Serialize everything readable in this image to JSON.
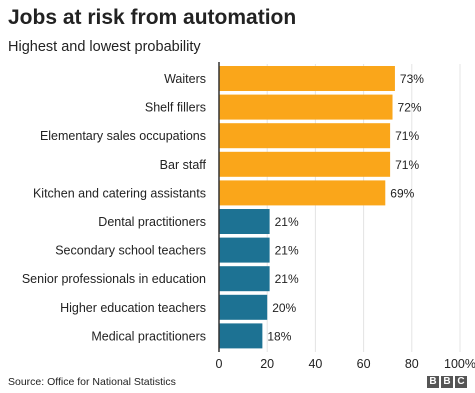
{
  "header": {
    "title": "Jobs at risk from automation",
    "subtitle": "Highest and lowest probability"
  },
  "footer": {
    "source": "Source: Office for National Statistics",
    "logo_letters": [
      "B",
      "B",
      "C"
    ]
  },
  "colors": {
    "high": "#faa61a",
    "low": "#1d7293",
    "axis": "#333333",
    "grid": "#e4e4e4",
    "text": "#222222"
  },
  "chart_data": {
    "type": "bar",
    "orientation": "horizontal",
    "title": "Jobs at risk from automation",
    "subtitle": "Highest and lowest probability",
    "categories": [
      "Waiters",
      "Shelf fillers",
      "Elementary sales occupations",
      "Bar staff",
      "Kitchen and catering assistants",
      "Dental practitioners",
      "Secondary school teachers",
      "Senior professionals in education",
      "Higher education teachers",
      "Medical practitioners"
    ],
    "values": [
      73,
      72,
      71,
      71,
      69,
      21,
      21,
      21,
      20,
      18
    ],
    "value_labels": [
      "73%",
      "72%",
      "71%",
      "71%",
      "69%",
      "21%",
      "21%",
      "21%",
      "20%",
      "18%"
    ],
    "groups": [
      "high",
      "high",
      "high",
      "high",
      "high",
      "low",
      "low",
      "low",
      "low",
      "low"
    ],
    "xlim": [
      0,
      100
    ],
    "xticks": [
      0,
      20,
      40,
      60,
      80,
      100
    ],
    "xtick_labels": [
      "0",
      "20",
      "40",
      "60",
      "80",
      "100%"
    ],
    "xlabel": "",
    "ylabel": "",
    "grid": true,
    "legend": "none"
  }
}
